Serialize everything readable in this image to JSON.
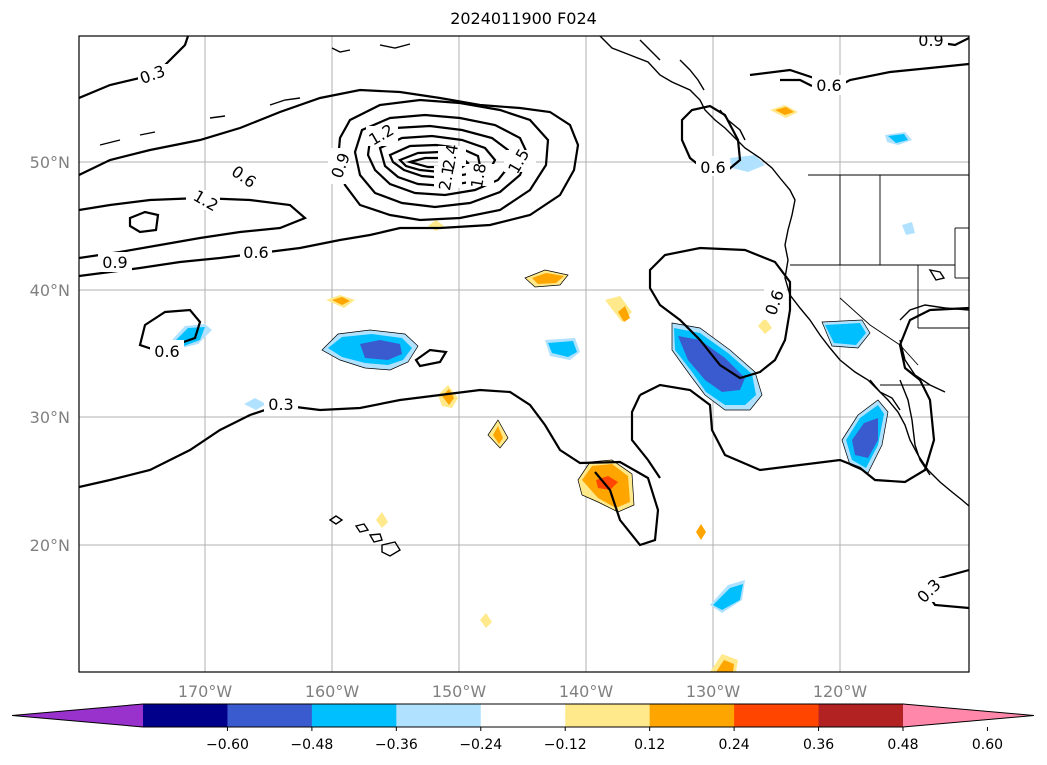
{
  "title": "2024011900 F024",
  "map": {
    "lat_labels": [
      "50°N",
      "40°N",
      "30°N",
      "20°N"
    ],
    "lon_labels": [
      "170°W",
      "160°W",
      "150°W",
      "140°W",
      "130°W",
      "120°W"
    ],
    "contour_labels": [
      "0.3",
      "0.6",
      "0.9",
      "1.2",
      "0.6",
      "0.9",
      "0.6",
      "1.2",
      "1.5",
      "1.8",
      "2.1",
      "2.4",
      "0.9",
      "0.6",
      "0.6",
      "0.6",
      "0.3",
      "0.6",
      "0.3",
      "0.9"
    ]
  },
  "colorbar": {
    "colors": [
      "#9932cc",
      "#00008b",
      "#3a5bd0",
      "#00bfff",
      "#b0e2ff",
      "#ffffff",
      "#ffe98a",
      "#ffa500",
      "#ff4500",
      "#b22222",
      "#ff88aa"
    ],
    "ticks": [
      "−0.60",
      "−0.48",
      "−0.36",
      "−0.24",
      "−0.12",
      "0.12",
      "0.24",
      "0.36",
      "0.48",
      "0.60"
    ]
  }
}
